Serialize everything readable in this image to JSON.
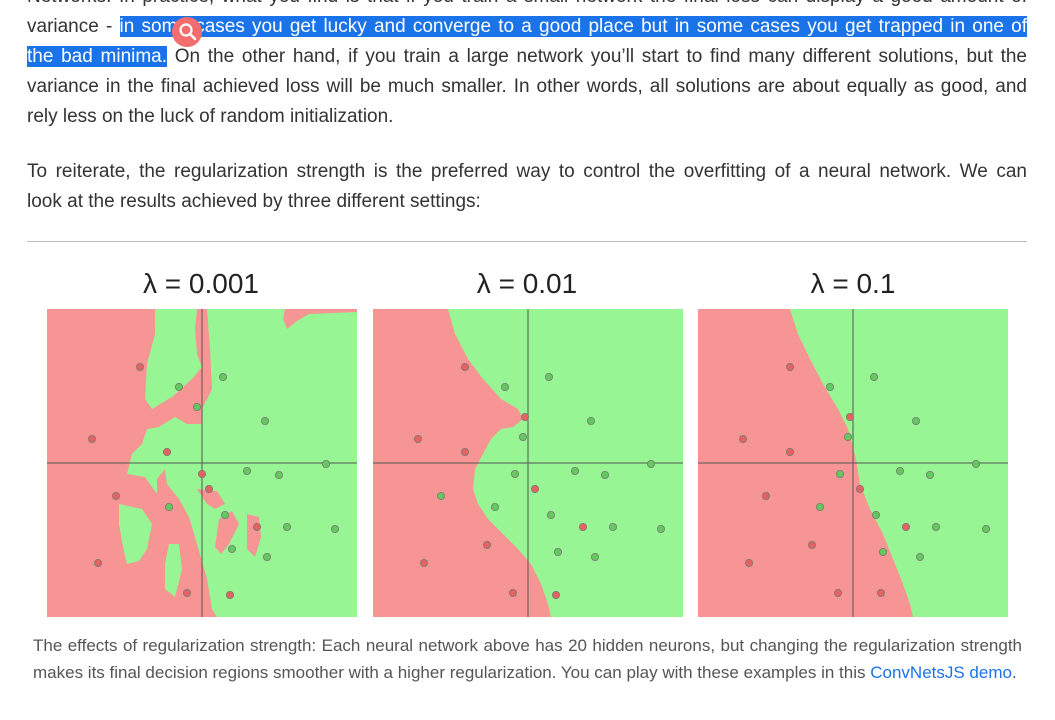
{
  "paragraph1": {
    "line0": "Networks. In practice, what you find is that if you train a small network the final loss can display a good amount of",
    "line1_pre": "variance - ",
    "line1_highlight": "in some cases you get lucky and converge to a good place but in some cases you get trapped in one of",
    "line2_highlight": "the bad minima.",
    "line2_post": " On the other hand, if you train a large network you’ll start to find many different solutions, but the",
    "line3": "variance in the final achieved loss will be much smaller. In other words, all solutions are about equally as good, and",
    "line4": "rely less on the luck of random initialization."
  },
  "paragraph2": {
    "line1": "To reiterate, the regularization strength is the preferred way to control the overfitting of a neural network. We can",
    "line2": "look at the results achieved by three different settings:"
  },
  "figure": {
    "panels": [
      {
        "title": "λ = 0.001"
      },
      {
        "title": "λ = 0.01"
      },
      {
        "title": "λ = 0.1"
      }
    ],
    "colors": {
      "red_region": "#f69594",
      "green_region": "#98f593",
      "red_point": "#e5625f",
      "green_point": "#63c95d",
      "axis": "#555555"
    }
  },
  "caption": {
    "text": "The effects of regularization strength: Each neural network above has 20 hidden neurons, but changing the regularization strength makes its final decision regions smoother with a higher regularization. You can play with these examples in this ",
    "link": "ConvNetsJS demo",
    "end": "."
  }
}
